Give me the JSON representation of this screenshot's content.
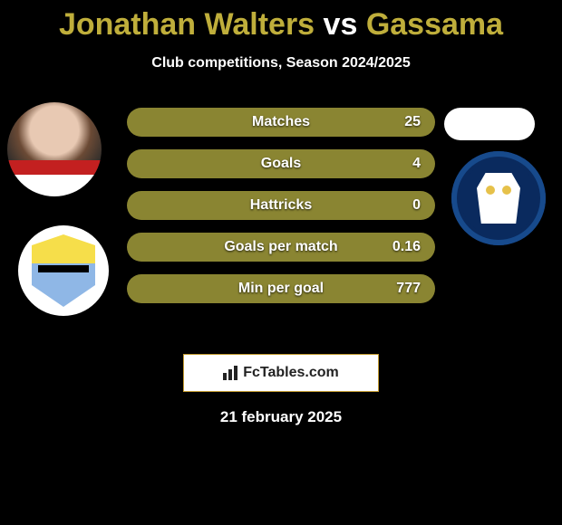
{
  "background_color": "#000000",
  "title": {
    "parts": [
      {
        "text": "Jonathan Walters",
        "color": "#bfae3b"
      },
      {
        "text": " vs ",
        "color": "#ffffff"
      },
      {
        "text": "Gassama",
        "color": "#bfae3b"
      }
    ],
    "fontsize": 34
  },
  "subtitle": "Club competitions, Season 2024/2025",
  "stats": {
    "bar_color": "#8a8532",
    "text_color": "#ffffff",
    "rows": [
      {
        "label": "Matches",
        "value": "25"
      },
      {
        "label": "Goals",
        "value": "4"
      },
      {
        "label": "Hattricks",
        "value": "0"
      },
      {
        "label": "Goals per match",
        "value": "0.16"
      },
      {
        "label": "Min per goal",
        "value": "777"
      }
    ]
  },
  "promo": {
    "text": "FcTables.com",
    "bg": "#ffffff",
    "border": "#c29a2f"
  },
  "date": "21 february 2025",
  "left_player": {
    "name": "Jonathan Walters"
  },
  "left_crest": {
    "name": "burnley-crest"
  },
  "right_crest": {
    "name": "sheffield-wednesday-crest"
  }
}
